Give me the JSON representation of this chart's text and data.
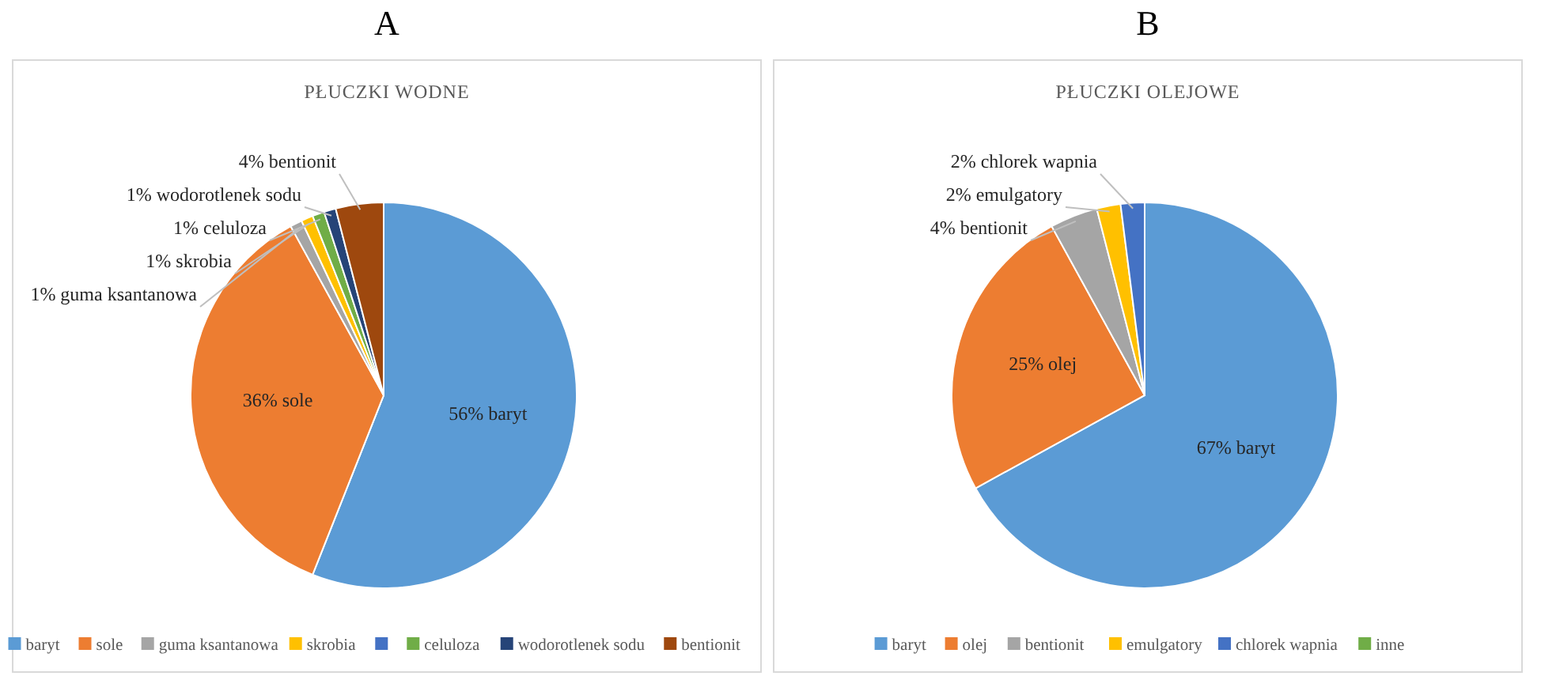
{
  "chart_data": [
    {
      "type": "pie",
      "subtitle": "A",
      "title": "PŁUCZKI WODNE",
      "legend": "bottom",
      "categories": [
        "baryt",
        "sole",
        "guma ksantanowa",
        "skrobia",
        null,
        "celuloza",
        "wodorotlenek sodu",
        "bentionit"
      ],
      "values": [
        56,
        36,
        1,
        1,
        0,
        1,
        1,
        4
      ],
      "colors": [
        "#5b9bd5",
        "#ed7d31",
        "#a5a5a5",
        "#ffc000",
        "#4472c4",
        "#70ad47",
        "#264478",
        "#9e480e"
      ],
      "value_labels": [
        "56% baryt",
        "36% sole",
        "1% guma ksantanowa",
        "1% skrobia",
        null,
        "1% celuloza",
        "1% wodorotlenek sodu",
        "4% bentionit"
      ]
    },
    {
      "type": "pie",
      "subtitle": "B",
      "title": "PŁUCZKI OLEJOWE",
      "legend": "bottom",
      "categories": [
        "baryt",
        "olej",
        "bentionit",
        "emulgatory",
        "chlorek wapnia",
        "inne"
      ],
      "values": [
        67,
        25,
        4,
        2,
        2,
        0
      ],
      "colors": [
        "#5b9bd5",
        "#ed7d31",
        "#a5a5a5",
        "#ffc000",
        "#4472c4",
        "#70ad47"
      ],
      "value_labels": [
        "67% baryt",
        "25% olej",
        "4% bentionit",
        "2% emulgatory",
        "2% chlorek wapnia",
        null
      ]
    }
  ]
}
